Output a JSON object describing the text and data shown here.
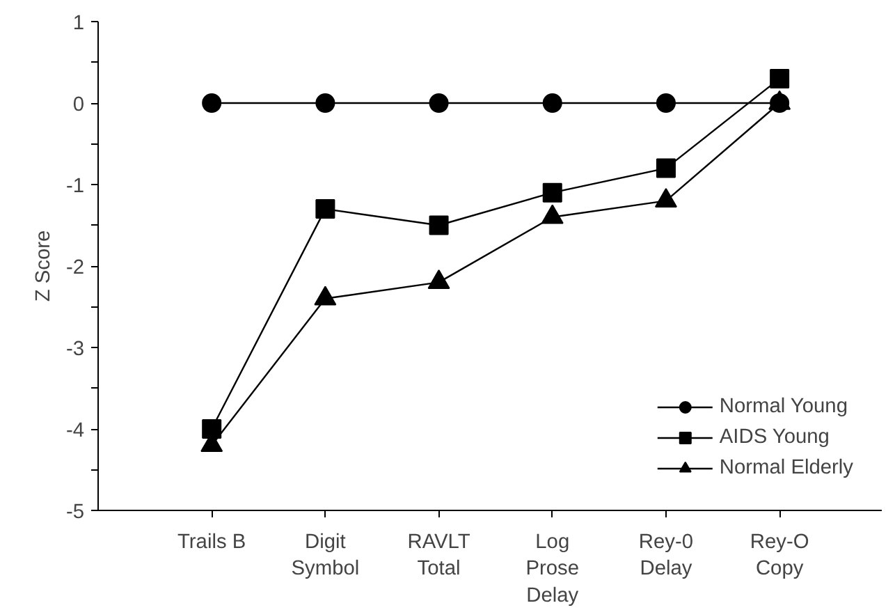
{
  "chart_data": {
    "type": "line",
    "ylabel": "Z Score",
    "categories": [
      "Trails B",
      "Digit\nSymbol",
      "RAVLT\nTotal",
      "Log\nProse\nDelay",
      "Rey-0\nDelay",
      "Rey-O\nCopy"
    ],
    "series": [
      {
        "name": "Normal Young",
        "color": "#000000",
        "marker": "circle",
        "values": [
          0,
          0,
          0,
          0,
          0,
          0
        ]
      },
      {
        "name": "AIDS Young",
        "color": "#000000",
        "marker": "square",
        "values": [
          -4.0,
          -1.3,
          -1.5,
          -1.1,
          -0.8,
          0.3
        ]
      },
      {
        "name": "Normal Elderly",
        "color": "#000000",
        "marker": "triangle",
        "values": [
          -4.2,
          -2.4,
          -2.2,
          -1.4,
          -1.2,
          0.0
        ]
      }
    ],
    "ylim": [
      -5,
      1
    ],
    "yticks": [
      -5,
      {
        "value": -4.5,
        "label": null
      },
      -4,
      {
        "value": -3.5,
        "label": null
      },
      -3,
      {
        "value": -2.5,
        "label": null
      },
      -2,
      {
        "value": -1.5,
        "label": null
      },
      -1,
      {
        "value": -0.5,
        "label": null
      },
      0,
      {
        "value": 0.5,
        "label": null
      },
      1
    ],
    "grid": false,
    "legend": "bottom right",
    "line_style": "solid"
  }
}
